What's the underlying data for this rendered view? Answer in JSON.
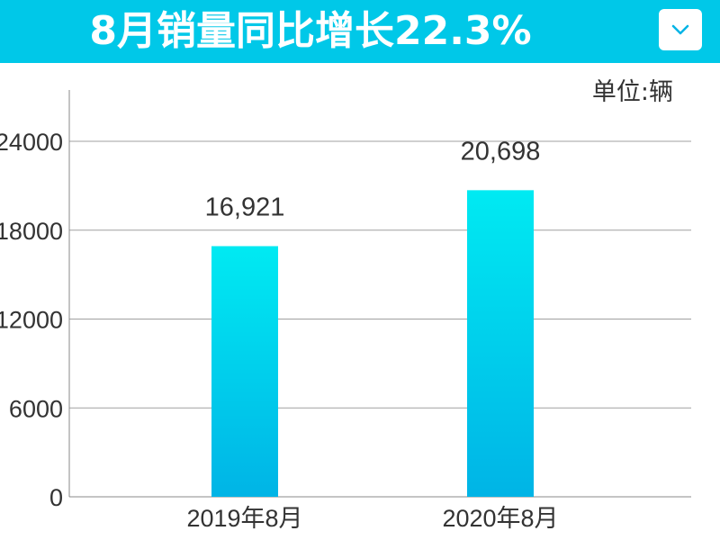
{
  "header": {
    "title": "8月销量同比增长22.3%",
    "background_color": "#00c8e8",
    "dropdown_icon": "chevron-down-icon"
  },
  "chart_data": {
    "type": "bar",
    "title": "8月销量同比增长22.3%",
    "unit_label": "单位:辆",
    "categories": [
      "2019年8月",
      "2020年8月"
    ],
    "values": [
      16921,
      20698
    ],
    "value_labels": [
      "16,921",
      "20,698"
    ],
    "xlabel": "",
    "ylabel": "",
    "ylim": [
      0,
      24000
    ],
    "yticks": [
      0,
      6000,
      12000,
      18000,
      24000
    ],
    "ytick_labels": [
      "0",
      "6000",
      "12000",
      "18000",
      "24000"
    ],
    "grid": true,
    "legend": "none",
    "colors": {
      "bar_top": "#00eaf2",
      "bar_bottom": "#00b4e6",
      "grid": "#a0a0a0",
      "axis": "#888888",
      "text": "#333333"
    }
  }
}
